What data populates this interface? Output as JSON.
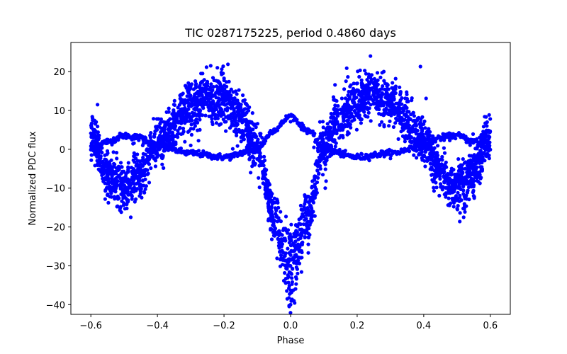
{
  "chart_data": {
    "type": "scatter",
    "title": "TIC 0287175225, period 0.4860 days",
    "xlabel": "Phase",
    "ylabel": "Normalized PDC flux",
    "xlim": [
      -0.66,
      0.66
    ],
    "ylim": [
      -42.5,
      27.5
    ],
    "xticks": [
      -0.6,
      -0.4,
      -0.2,
      0.0,
      0.2,
      0.4,
      0.6
    ],
    "xtick_labels": [
      "−0.6",
      "−0.4",
      "−0.2",
      "0.0",
      "0.2",
      "0.4",
      "0.6"
    ],
    "yticks": [
      -40,
      -30,
      -20,
      -10,
      0,
      10,
      20
    ],
    "ytick_labels": [
      "−40",
      "−30",
      "−20",
      "−10",
      "0",
      "10",
      "20"
    ],
    "grid": false,
    "marker_color": "#0000ff",
    "phase_range": [
      -0.6,
      0.6
    ],
    "series": [
      {
        "description_key": "primary_light_curve",
        "keypoints": [
          [
            -0.6,
            4
          ],
          [
            -0.55,
            -6
          ],
          [
            -0.5,
            -10
          ],
          [
            -0.45,
            -6
          ],
          [
            -0.4,
            2
          ],
          [
            -0.3,
            11
          ],
          [
            -0.25,
            13
          ],
          [
            -0.2,
            13
          ],
          [
            -0.15,
            8
          ],
          [
            -0.1,
            0
          ],
          [
            -0.05,
            -18
          ],
          [
            0.0,
            -30
          ],
          [
            0.05,
            -18
          ],
          [
            0.1,
            0
          ],
          [
            0.15,
            8
          ],
          [
            0.2,
            13
          ],
          [
            0.25,
            14
          ],
          [
            0.3,
            12
          ],
          [
            0.4,
            2
          ],
          [
            0.45,
            -6
          ],
          [
            0.5,
            -10
          ],
          [
            0.55,
            -6
          ],
          [
            0.6,
            4
          ]
        ],
        "spread": 3.0,
        "min_extent": -40,
        "max_extent": 24
      },
      {
        "description_key": "secondary_light_curve",
        "keypoints": [
          [
            -0.6,
            0
          ],
          [
            -0.55,
            2
          ],
          [
            -0.5,
            3.5
          ],
          [
            -0.45,
            3
          ],
          [
            -0.4,
            1
          ],
          [
            -0.3,
            -1
          ],
          [
            -0.2,
            -2
          ],
          [
            -0.1,
            0
          ],
          [
            -0.05,
            5
          ],
          [
            0.0,
            8.5
          ],
          [
            0.05,
            5
          ],
          [
            0.1,
            0
          ],
          [
            0.2,
            -2
          ],
          [
            0.3,
            -1
          ],
          [
            0.4,
            1
          ],
          [
            0.45,
            3
          ],
          [
            0.5,
            3.5
          ],
          [
            0.55,
            2
          ],
          [
            0.6,
            0
          ]
        ],
        "spread": 0.4
      }
    ]
  }
}
